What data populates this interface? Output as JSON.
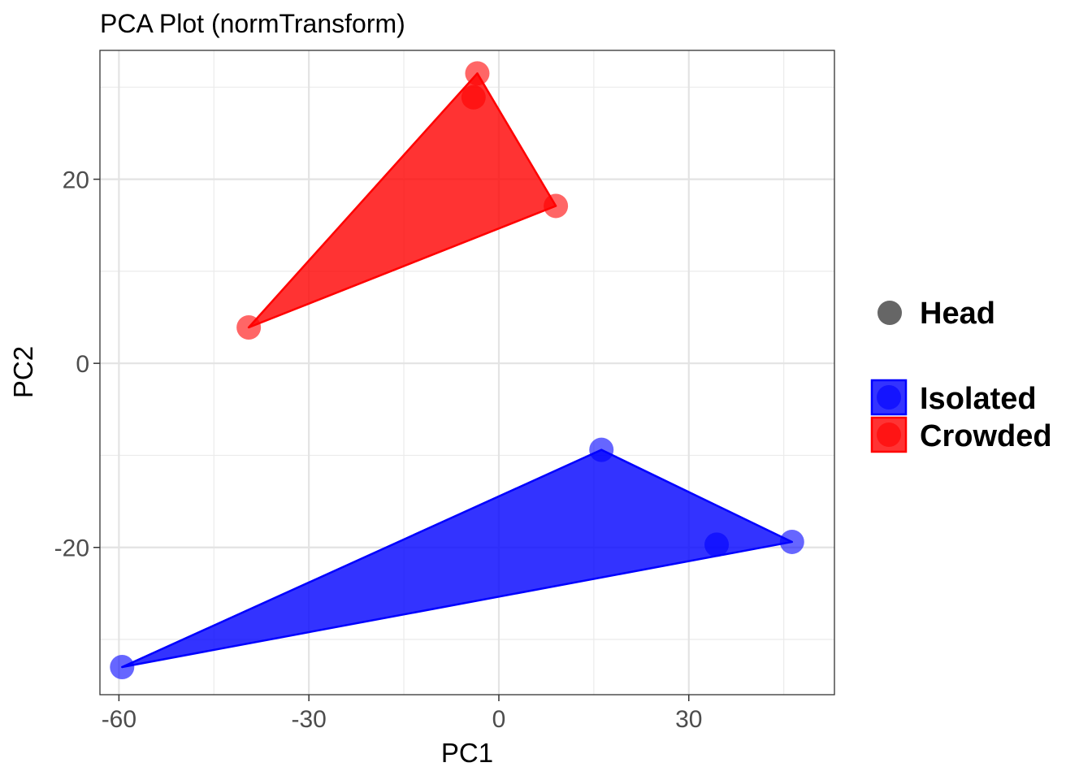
{
  "chart_data": {
    "type": "scatter",
    "title": "PCA Plot (normTransform)",
    "xlabel": "PC1",
    "ylabel": "PC2",
    "xlim": [
      -63,
      53
    ],
    "ylim": [
      -36,
      34
    ],
    "x_ticks": [
      -60,
      -30,
      0,
      30
    ],
    "x_tick_labels": [
      "-60",
      "-30",
      "0",
      "30"
    ],
    "y_ticks": [
      -20,
      0,
      20
    ],
    "y_tick_labels": [
      "-20",
      "0",
      "20"
    ],
    "x_minor": [
      -45,
      -15,
      15,
      45
    ],
    "y_minor": [
      -30,
      -10,
      10,
      30
    ],
    "grid": true,
    "legend_position": "right",
    "shape_legend": [
      {
        "label": "Head",
        "shape": "circle",
        "color": "#666666"
      }
    ],
    "series": [
      {
        "name": "Isolated",
        "color": "#0000ff",
        "hull": true,
        "points": [
          {
            "x": -59.5,
            "y": -33.0
          },
          {
            "x": 16.2,
            "y": -9.4
          },
          {
            "x": 34.4,
            "y": -19.7
          },
          {
            "x": 46.3,
            "y": -19.4
          }
        ]
      },
      {
        "name": "Crowded",
        "color": "#ff0000",
        "hull": true,
        "points": [
          {
            "x": -39.5,
            "y": 3.9
          },
          {
            "x": -3.4,
            "y": 31.5
          },
          {
            "x": -4.0,
            "y": 28.9
          },
          {
            "x": 9.0,
            "y": 17.1
          }
        ]
      }
    ]
  }
}
